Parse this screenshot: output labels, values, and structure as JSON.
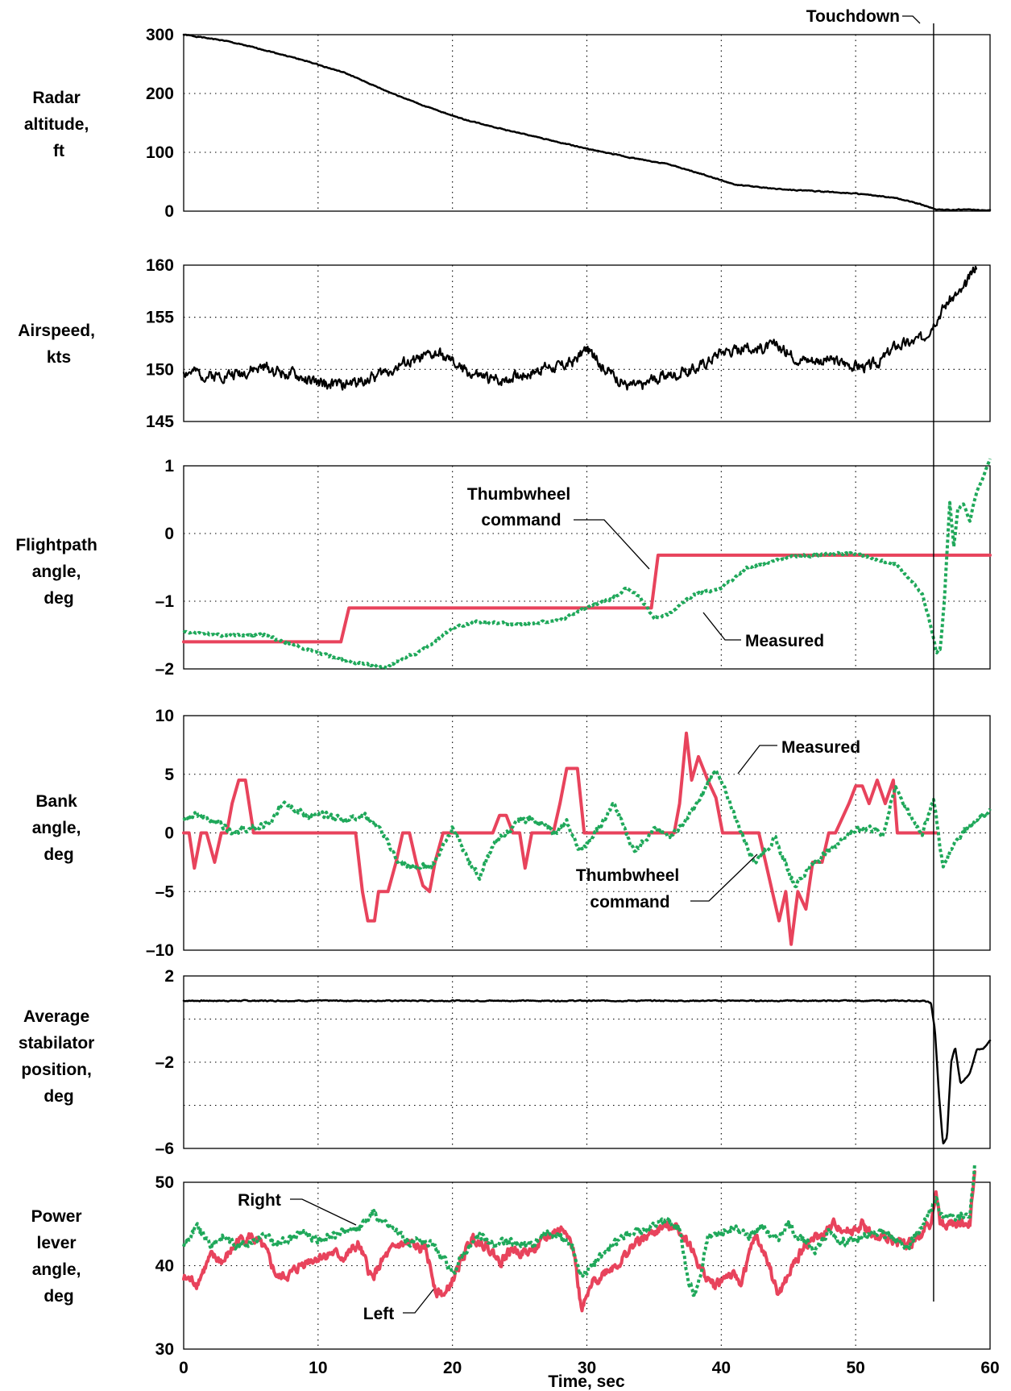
{
  "chart_data": [
    {
      "type": "line",
      "ylabel": [
        "Radar",
        "altitude,",
        "ft"
      ],
      "ylim": [
        0,
        300
      ],
      "yticks": [
        0,
        100,
        200,
        300
      ],
      "ytick_labels": [
        "0",
        "100",
        "200",
        "300"
      ],
      "xlim": [
        0,
        60
      ],
      "grid": true,
      "series": [
        {
          "color": "#000000",
          "style": "solid",
          "width": 2.5,
          "noise": 0.6,
          "seed": 1,
          "x": [
            0,
            3,
            6,
            9,
            12,
            15,
            18,
            21,
            24,
            27,
            30,
            33,
            36,
            39,
            41,
            44,
            47,
            50,
            53,
            54.5,
            56,
            57,
            58,
            59,
            60
          ],
          "y": [
            300,
            290,
            274,
            256,
            235,
            205,
            178,
            155,
            138,
            122,
            106,
            92,
            80,
            60,
            45,
            38,
            34,
            30,
            22,
            14,
            3,
            2,
            3,
            2,
            2
          ]
        }
      ]
    },
    {
      "type": "line",
      "ylabel": [
        "Airspeed,",
        "kts"
      ],
      "ylim": [
        145,
        160
      ],
      "yticks": [
        145,
        150,
        155,
        160
      ],
      "ytick_labels": [
        "145",
        "150",
        "155",
        "160"
      ],
      "xlim": [
        0,
        60
      ],
      "grid": true,
      "series": [
        {
          "color": "#000000",
          "style": "solid",
          "width": 2.2,
          "noise": 0.45,
          "seed": 2,
          "x": [
            0,
            2,
            4,
            6,
            8,
            10,
            12,
            14,
            16,
            18,
            19,
            21,
            23,
            25,
            27,
            28,
            29,
            30,
            31,
            32,
            33,
            34,
            35,
            36,
            37,
            38,
            39,
            40,
            42,
            44,
            46,
            48,
            50,
            51,
            52,
            53,
            54,
            55,
            56,
            57,
            58,
            59
          ],
          "y": [
            149.8,
            149.4,
            149.6,
            150.2,
            149.5,
            148.6,
            148.5,
            149.2,
            150.3,
            151.2,
            151.5,
            149.8,
            148.9,
            149.4,
            150.3,
            150.2,
            150.8,
            152.0,
            150.5,
            149.5,
            148.5,
            148.4,
            149.0,
            149.5,
            149.6,
            150.0,
            150.8,
            151.8,
            152.0,
            152.2,
            151.0,
            150.9,
            150.4,
            150.2,
            151.0,
            152.3,
            152.5,
            153.0,
            155.0,
            156.7,
            157.5,
            160.1
          ]
        }
      ]
    },
    {
      "type": "line",
      "ylabel": [
        "Flightpath",
        "angle,",
        "deg"
      ],
      "ylim": [
        -2,
        1
      ],
      "yticks": [
        -2,
        -1,
        0,
        1
      ],
      "ytick_labels": [
        "–2",
        "–1",
        "0",
        "1"
      ],
      "xlim": [
        0,
        60
      ],
      "grid": true,
      "annotations": [
        {
          "text": [
            "Thumbwheel",
            "command"
          ]
        },
        {
          "text": [
            "Measured"
          ]
        }
      ],
      "series": [
        {
          "color": "#e8435c",
          "style": "solid",
          "width": 4,
          "noise": 0,
          "seed": 3,
          "x": [
            0,
            11.7,
            12.3,
            34.8,
            35.3,
            60
          ],
          "y": [
            -1.6,
            -1.6,
            -1.1,
            -1.1,
            -0.32,
            -0.32
          ]
        },
        {
          "color": "#1fa85a",
          "style": "dotted",
          "width": 4,
          "noise": 0.015,
          "seed": 4,
          "x": [
            0,
            3,
            6,
            9,
            12,
            15,
            18,
            20,
            22,
            25,
            28,
            30,
            32,
            33,
            34,
            35,
            36,
            38,
            40,
            42,
            45,
            48,
            50,
            53,
            55,
            55.5,
            56,
            56.3,
            56.6,
            57,
            57.3,
            57.6,
            58,
            58.5,
            59,
            60
          ],
          "y": [
            -1.45,
            -1.5,
            -1.5,
            -1.7,
            -1.88,
            -1.98,
            -1.7,
            -1.4,
            -1.3,
            -1.35,
            -1.28,
            -1.1,
            -0.95,
            -0.8,
            -0.95,
            -1.25,
            -1.2,
            -0.9,
            -0.8,
            -0.5,
            -0.35,
            -0.3,
            -0.3,
            -0.45,
            -0.9,
            -1.3,
            -1.75,
            -1.7,
            -1.0,
            0.45,
            -0.2,
            0.35,
            0.45,
            0.2,
            0.6,
            1.08
          ]
        }
      ]
    },
    {
      "type": "line",
      "ylabel": [
        "Bank",
        "angle,",
        "deg"
      ],
      "ylim": [
        -10,
        10
      ],
      "yticks": [
        -10,
        -5,
        0,
        5,
        10
      ],
      "ytick_labels": [
        "–10",
        "–5",
        "0",
        "5",
        "10"
      ],
      "xlim": [
        0,
        60
      ],
      "grid": true,
      "annotations": [
        {
          "text": [
            "Measured"
          ]
        },
        {
          "text": [
            "Thumbwheel",
            "command"
          ]
        }
      ],
      "series": [
        {
          "color": "#e8435c",
          "style": "solid",
          "width": 4,
          "noise": 0,
          "seed": 5,
          "x": [
            0,
            0.4,
            0.8,
            1.3,
            1.7,
            2.3,
            2.8,
            3.2,
            3.6,
            4.1,
            4.6,
            5.2,
            5.6,
            12.8,
            13.3,
            13.7,
            14.2,
            14.5,
            15.2,
            15.8,
            16.3,
            16.8,
            17.3,
            17.8,
            18.3,
            18.7,
            19.3,
            19.8,
            23.0,
            23.5,
            24.0,
            24.5,
            25.0,
            25.4,
            25.9,
            27.5,
            28.0,
            28.5,
            29.3,
            29.8,
            36.5,
            36.9,
            37.4,
            37.8,
            38.3,
            39.0,
            39.6,
            40.1,
            42.8,
            43.3,
            43.8,
            44.3,
            44.8,
            45.2,
            45.7,
            46.3,
            46.8,
            47.5,
            48.0,
            48.5,
            49.5,
            50.0,
            50.5,
            51.0,
            51.6,
            52.2,
            52.8,
            53.1,
            53.5,
            56.0
          ],
          "y": [
            0,
            0,
            -3,
            0,
            0,
            -2.5,
            0,
            0,
            2.5,
            4.5,
            4.5,
            0,
            0,
            0,
            -5,
            -7.5,
            -7.5,
            -5,
            -5,
            -2.5,
            0,
            0,
            -2.5,
            -4.5,
            -5,
            -2.5,
            0,
            0,
            0,
            1.5,
            1.5,
            0,
            0,
            -3,
            0,
            0,
            2.5,
            5.5,
            5.5,
            0,
            0,
            2.5,
            8.5,
            4.5,
            6.5,
            4.5,
            3.0,
            0,
            0,
            -2.5,
            -5,
            -7.5,
            -5,
            -9.5,
            -5,
            -6.5,
            -2.5,
            -2.5,
            0,
            0,
            2.5,
            4.0,
            4.0,
            2.5,
            4.5,
            2.5,
            4.5,
            0,
            0,
            0
          ]
        },
        {
          "color": "#1fa85a",
          "style": "dotted",
          "width": 4,
          "noise": 0.2,
          "seed": 6,
          "x": [
            0,
            1,
            2.5,
            3.5,
            5,
            6.5,
            7.5,
            9,
            10.5,
            12,
            13.5,
            14.5,
            16,
            17,
            18.5,
            20,
            21,
            22,
            23,
            25,
            26,
            27.5,
            28.5,
            29.5,
            31,
            32,
            33.5,
            35,
            36,
            37,
            38.5,
            39.5,
            40.5,
            41.5,
            42.5,
            44,
            45.5,
            46.5,
            48,
            49.5,
            51,
            52,
            53,
            54,
            55,
            55.8,
            56.5,
            57.3,
            58.3,
            60
          ],
          "y": [
            1.2,
            1.5,
            1.0,
            0.2,
            0.3,
            0.8,
            2.8,
            1.5,
            1.5,
            1.2,
            1.5,
            0.5,
            -2.5,
            -3.0,
            -2.8,
            0.5,
            -2.0,
            -3.8,
            -1.0,
            1.0,
            1.3,
            0.0,
            0.8,
            -1.5,
            0.5,
            2.5,
            -1.5,
            0.3,
            -0.2,
            0.5,
            3.0,
            5.5,
            3.0,
            0.0,
            -2.5,
            -0.5,
            -4.5,
            -3.0,
            -1.5,
            0.0,
            0.5,
            -0.2,
            4.0,
            1.5,
            0.0,
            3.0,
            -3.0,
            -0.8,
            0.5,
            1.8
          ]
        }
      ]
    },
    {
      "type": "line",
      "ylabel": [
        "Average",
        "stabilator",
        "position,",
        "deg"
      ],
      "ylim": [
        -6,
        2
      ],
      "yticks": [
        -6,
        -4,
        -2,
        0,
        2
      ],
      "ytick_labels": [
        "–6",
        "",
        "–2",
        "",
        "2"
      ],
      "xlim": [
        0,
        60
      ],
      "grid": true,
      "series": [
        {
          "color": "#000000",
          "style": "solid",
          "width": 2.5,
          "noise": 0.02,
          "seed": 7,
          "x": [
            0,
            10,
            20,
            30,
            40,
            50,
            55,
            55.6,
            55.9,
            56.2,
            56.5,
            56.8,
            57.1,
            57.4,
            57.8,
            58.1,
            58.5,
            59.0,
            59.5,
            60
          ],
          "y": [
            0.85,
            0.85,
            0.85,
            0.85,
            0.85,
            0.85,
            0.85,
            0.75,
            -0.5,
            -3.5,
            -5.8,
            -5.5,
            -2.0,
            -1.3,
            -3.0,
            -2.8,
            -2.5,
            -1.4,
            -1.4,
            -1.0
          ]
        }
      ]
    },
    {
      "type": "line",
      "ylabel": [
        "Power",
        "lever",
        "angle,",
        "deg"
      ],
      "ylim": [
        30,
        50
      ],
      "yticks": [
        30,
        40,
        50
      ],
      "ytick_labels": [
        "30",
        "40",
        "50"
      ],
      "xlim": [
        0,
        60
      ],
      "xlabel": "Time, sec",
      "xticks": [
        0,
        10,
        20,
        30,
        40,
        50,
        60
      ],
      "xtick_labels": [
        "0",
        "10",
        "20",
        "30",
        "40",
        "50",
        "60"
      ],
      "grid": true,
      "annotations": [
        {
          "text": [
            "Right"
          ]
        },
        {
          "text": [
            "Left"
          ]
        }
      ],
      "series": [
        {
          "color": "#e8435c",
          "style": "solid",
          "width": 4,
          "noise": 0.5,
          "seed": 8,
          "x": [
            0,
            1,
            2,
            3,
            4,
            5,
            6,
            7,
            8,
            9,
            10,
            11,
            12,
            13,
            14,
            15,
            16,
            17,
            17.5,
            18,
            18.8,
            19.5,
            20.5,
            21.5,
            22.5,
            23.5,
            24.5,
            25.5,
            26.5,
            27.5,
            28.5,
            29.1,
            29.6,
            30.5,
            31.5,
            32.5,
            33.5,
            34.5,
            35.5,
            36.5,
            37.5,
            38.5,
            39.5,
            40.5,
            41.5,
            42.5,
            43.5,
            44.2,
            44.8,
            45.5,
            46.5,
            47.5,
            48.5,
            49.5,
            50.5,
            51.5,
            52.5,
            53.5,
            54.5,
            55.5,
            56.0,
            56.3,
            58.5,
            58.9
          ],
          "y": [
            38.5,
            38.0,
            41.0,
            40.5,
            43.0,
            43.5,
            42.0,
            38.5,
            39.0,
            40.5,
            41.0,
            41.5,
            41.0,
            42.5,
            38.5,
            41.0,
            42.5,
            42.5,
            42.0,
            42.0,
            37.0,
            36.5,
            40.0,
            43.5,
            42.5,
            40.5,
            42.0,
            41.5,
            42.5,
            44.0,
            44.5,
            41.0,
            34.5,
            38.0,
            39.5,
            40.5,
            42.5,
            43.5,
            44.5,
            45.0,
            43.0,
            39.5,
            37.5,
            39.0,
            38.0,
            43.5,
            40.5,
            36.5,
            38.0,
            40.5,
            43.0,
            43.5,
            45.0,
            44.0,
            45.0,
            43.0,
            43.5,
            42.5,
            43.0,
            45.0,
            48.5,
            45.0,
            45.0,
            52.5
          ]
        },
        {
          "color": "#1fa85a",
          "style": "dotted",
          "width": 4,
          "noise": 0.4,
          "seed": 9,
          "x": [
            0,
            1,
            2,
            3,
            4,
            5,
            6,
            7,
            8,
            9,
            10,
            11,
            12,
            13,
            14,
            15,
            16,
            17,
            18,
            19,
            20,
            21,
            22,
            23,
            24,
            25,
            26,
            27,
            28,
            29,
            29.5,
            30,
            31,
            32,
            33,
            34,
            35,
            36,
            37,
            37.5,
            38,
            38.5,
            39,
            40,
            41,
            42,
            43,
            44,
            45,
            46,
            47,
            48,
            49,
            50,
            51,
            52,
            53,
            54,
            55,
            56,
            56.3,
            58.5,
            58.9
          ],
          "y": [
            42.5,
            44.5,
            42.5,
            43.5,
            42.5,
            43.0,
            43.5,
            42.5,
            43.5,
            44.0,
            43.0,
            43.5,
            44.0,
            44.5,
            46.5,
            45.0,
            44.0,
            42.5,
            43.0,
            41.5,
            39.0,
            42.0,
            43.5,
            42.5,
            43.0,
            42.5,
            42.5,
            44.0,
            43.5,
            42.0,
            39.0,
            39.5,
            41.0,
            42.5,
            44.0,
            44.0,
            45.0,
            45.5,
            44.0,
            38.5,
            36.5,
            39.0,
            43.5,
            44.0,
            44.5,
            43.5,
            45.0,
            43.0,
            45.0,
            43.0,
            42.0,
            44.0,
            43.0,
            43.0,
            43.5,
            44.0,
            43.0,
            42.5,
            45.0,
            48.0,
            46.0,
            46.0,
            52.5
          ]
        }
      ]
    }
  ],
  "touchdown": {
    "label": "Touchdown",
    "x": 55.8
  }
}
